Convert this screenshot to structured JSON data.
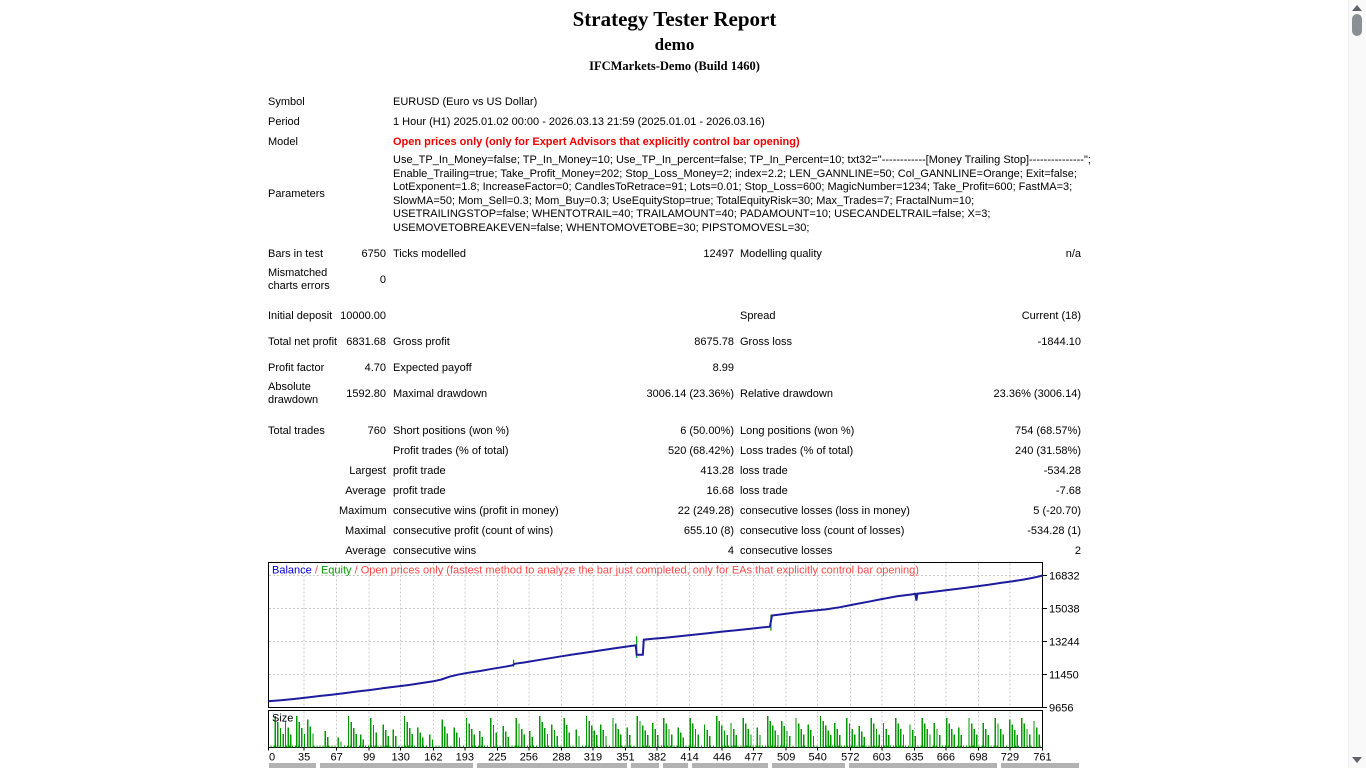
{
  "header": {
    "title": "Strategy Tester Report",
    "subtitle": "demo",
    "server_line": "IFCMarkets-Demo (Build 1460)"
  },
  "colors": {
    "model_text": "#f00000",
    "legend_balance": "#0000dd",
    "legend_equity": "#00a000",
    "legend_note": "#ff4a4a",
    "balance_line": "#1c1c9e",
    "equity_spike": "#00a000",
    "size_bar": "#009a00",
    "grid": "#cbcbcb",
    "chart_border": "#000000",
    "table_header_strip": "#b2b2b2"
  },
  "parameters_lines": [
    "Use_TP_In_Money=false; TP_In_Money=10; Use_TP_In_percent=false; TP_In_Percent=10; txt32=\"------------[Money Trailing Stop]---------------\";",
    "Enable_Trailing=true; Take_Profit_Money=202; Stop_Loss_Money=2; index=2.2; LEN_GANNLINE=50; Col_GANNLINE=Orange; Exit=false;",
    "LotExponent=1.8; IncreaseFactor=0; CandlesToRetrace=91; Lots=0.01; Stop_Loss=600; MagicNumber=1234; Take_Profit=600; FastMA=3;",
    "SlowMA=50; Mom_Sell=0.3; Mom_Buy=0.3; UseEquityStop=true; TotalEquityRisk=30; Max_Trades=7; FractalNum=10;",
    "USETRAILINGSTOP=false; WHENTOTRAIL=40; TRAILAMOUNT=40; PADAMOUNT=10; USECANDELTRAIL=false; X=3;",
    "USEMOVETOBREAKEVEN=false; WHENTOMOVETOBE=30; PIPSTOMOVESL=30;"
  ],
  "info_rows": [
    {
      "al": "Symbol",
      "wide": "EURUSD (Euro vs US Dollar)"
    },
    {
      "al": "Period",
      "wide": "1 Hour (H1) 2025.01.02 00:00 - 2026.03.13 21:59 (2025.01.01 - 2026.03.16)"
    },
    {
      "al": "Model",
      "wide": "Open prices only (only for Expert Advisors that explicitly control bar opening)",
      "red": true
    },
    {
      "al": "Parameters",
      "params": true
    },
    {
      "al": "Bars in test",
      "av": "6750",
      "bl": "Ticks modelled",
      "bv": "12497",
      "cl": "Modelling quality",
      "cv": "n/a",
      "mt": true
    },
    {
      "al": "Mismatched charts errors",
      "av": "0",
      "tall": true
    },
    {
      "gap": 10
    },
    {
      "al": "Initial deposit",
      "av": "10000.00",
      "cl": "Spread",
      "cv": "Current (18)"
    },
    {
      "al": "Total net profit",
      "av": "6831.68",
      "bl": "Gross profit",
      "bv": "8675.78",
      "cl": "Gross loss",
      "cv": "-1844.10",
      "tall": true
    },
    {
      "al": "Profit factor",
      "av": "4.70",
      "bl": "Expected payoff",
      "bv": "8.99"
    },
    {
      "al": "Absolute drawdown",
      "av": "1592.80",
      "bl": "Maximal drawdown",
      "bv": "3006.14 (23.36%)",
      "cl": "Relative drawdown",
      "cv": "23.36% (3006.14)",
      "tall": true
    },
    {
      "gap": 11
    },
    {
      "al": "Total trades",
      "av": "760",
      "bl": "Short positions (won %)",
      "bv": "6 (50.00%)",
      "cl": "Long positions (won %)",
      "cv": "754 (68.57%)"
    },
    {
      "bl": "Profit trades (% of total)",
      "bv": "520 (68.42%)",
      "cl": "Loss trades (% of total)",
      "cv": "240 (31.58%)"
    },
    {
      "av": "Largest",
      "bl": "profit trade",
      "bv": "413.28",
      "cl": "loss trade",
      "cv": "-534.28"
    },
    {
      "av": "Average",
      "bl": "profit trade",
      "bv": "16.68",
      "cl": "loss trade",
      "cv": "-7.68"
    },
    {
      "av": "Maximum",
      "bl": "consecutive wins (profit in money)",
      "bv": "22 (249.28)",
      "cl": "consecutive losses (loss in money)",
      "cv": "5 (-20.70)"
    },
    {
      "av": "Maximal",
      "bl": "consecutive profit (count of wins)",
      "bv": "655.10 (8)",
      "cl": "consecutive loss (count of losses)",
      "cv": "-534.28 (1)"
    },
    {
      "av": "Average",
      "bl": "consecutive wins",
      "bv": "4",
      "cl": "consecutive losses",
      "cv": "2"
    }
  ],
  "chart_data": [
    {
      "type": "line",
      "name": "balance-equity-graph",
      "legend": [
        {
          "label": "Balance",
          "color": "#0000dd"
        },
        {
          "label": "Equity",
          "color": "#00a000"
        },
        {
          "label": "Open prices only (fastest method to analyze the bar just completed, only for EAs that explicitly control bar opening)",
          "color": "#ff4a4a"
        }
      ],
      "x_ticks": [
        0,
        35,
        67,
        99,
        130,
        162,
        193,
        225,
        256,
        288,
        319,
        351,
        382,
        414,
        446,
        477,
        509,
        540,
        572,
        603,
        635,
        666,
        698,
        729,
        761
      ],
      "y_ticks": [
        16832,
        15038,
        13244,
        11450,
        9656
      ],
      "x_range": [
        0,
        761
      ],
      "y_range": [
        9656,
        17530
      ],
      "grid": true,
      "series": [
        {
          "name": "Balance",
          "color": "#1c1c9e",
          "points": [
            [
              0,
              10000
            ],
            [
              12,
              10045
            ],
            [
              25,
              10120
            ],
            [
              38,
              10200
            ],
            [
              50,
              10280
            ],
            [
              62,
              10350
            ],
            [
              75,
              10440
            ],
            [
              88,
              10530
            ],
            [
              100,
              10610
            ],
            [
              112,
              10700
            ],
            [
              125,
              10790
            ],
            [
              138,
              10880
            ],
            [
              150,
              10980
            ],
            [
              162,
              11080
            ],
            [
              170,
              11180
            ],
            [
              178,
              11330
            ],
            [
              186,
              11440
            ],
            [
              196,
              11540
            ],
            [
              208,
              11640
            ],
            [
              220,
              11760
            ],
            [
              232,
              11870
            ],
            [
              240,
              11950
            ],
            [
              242,
              12030
            ],
            [
              252,
              12110
            ],
            [
              264,
              12220
            ],
            [
              276,
              12330
            ],
            [
              288,
              12440
            ],
            [
              300,
              12540
            ],
            [
              312,
              12640
            ],
            [
              325,
              12750
            ],
            [
              338,
              12860
            ],
            [
              350,
              12950
            ],
            [
              358,
              13010
            ],
            [
              361,
              13040
            ],
            [
              362,
              12520
            ],
            [
              368,
              12520
            ],
            [
              369,
              13340
            ],
            [
              378,
              13390
            ],
            [
              390,
              13450
            ],
            [
              404,
              13530
            ],
            [
              418,
              13610
            ],
            [
              432,
              13690
            ],
            [
              446,
              13780
            ],
            [
              460,
              13860
            ],
            [
              474,
              13940
            ],
            [
              486,
              14010
            ],
            [
              493,
              14050
            ],
            [
              495,
              14660
            ],
            [
              505,
              14730
            ],
            [
              518,
              14820
            ],
            [
              532,
              14900
            ],
            [
              548,
              14990
            ],
            [
              562,
              15110
            ],
            [
              576,
              15260
            ],
            [
              590,
              15410
            ],
            [
              604,
              15560
            ],
            [
              618,
              15700
            ],
            [
              630,
              15790
            ],
            [
              636,
              15830
            ],
            [
              637,
              15470
            ],
            [
              638,
              15840
            ],
            [
              648,
              15910
            ],
            [
              660,
              15990
            ],
            [
              672,
              16070
            ],
            [
              684,
              16150
            ],
            [
              696,
              16240
            ],
            [
              708,
              16330
            ],
            [
              720,
              16430
            ],
            [
              732,
              16520
            ],
            [
              742,
              16610
            ],
            [
              750,
              16690
            ],
            [
              756,
              16760
            ],
            [
              761,
              16830
            ]
          ]
        },
        {
          "name": "Equity",
          "color": "#00a000",
          "spikes": [
            [
              241,
              11870,
              12250
            ],
            [
              362,
              12350,
              13530
            ],
            [
              494,
              13830,
              14700
            ]
          ]
        }
      ]
    },
    {
      "type": "bar",
      "name": "trade-size-graph",
      "label": "Size",
      "color": "#009a00",
      "baseline_step": 3,
      "clusters": [
        [
          6,
          0.95,
          4
        ],
        [
          16,
          0.8,
          3
        ],
        [
          27,
          0.95,
          4
        ],
        [
          38,
          0.85,
          3
        ],
        [
          55,
          0.5,
          2
        ],
        [
          68,
          0.3,
          2
        ],
        [
          78,
          0.95,
          4
        ],
        [
          90,
          0.4,
          2
        ],
        [
          100,
          0.9,
          3
        ],
        [
          112,
          0.7,
          3
        ],
        [
          122,
          0.55,
          2
        ],
        [
          133,
          0.95,
          4
        ],
        [
          146,
          0.6,
          3
        ],
        [
          158,
          0.4,
          2
        ],
        [
          170,
          0.85,
          3
        ],
        [
          182,
          0.6,
          3
        ],
        [
          194,
          0.9,
          4
        ],
        [
          207,
          0.5,
          2
        ],
        [
          218,
          0.9,
          3
        ],
        [
          230,
          0.65,
          3
        ],
        [
          243,
          0.9,
          4
        ],
        [
          256,
          0.5,
          2
        ],
        [
          266,
          0.95,
          4
        ],
        [
          278,
          0.7,
          3
        ],
        [
          290,
          0.9,
          3
        ],
        [
          302,
          0.55,
          2
        ],
        [
          312,
          0.95,
          5
        ],
        [
          326,
          0.7,
          3
        ],
        [
          338,
          0.9,
          4
        ],
        [
          352,
          0.6,
          2
        ],
        [
          362,
          0.95,
          5
        ],
        [
          377,
          0.75,
          3
        ],
        [
          388,
          0.9,
          4
        ],
        [
          402,
          0.6,
          3
        ],
        [
          414,
          0.9,
          4
        ],
        [
          428,
          0.7,
          3
        ],
        [
          440,
          0.95,
          5
        ],
        [
          454,
          0.75,
          3
        ],
        [
          466,
          0.9,
          4
        ],
        [
          480,
          0.6,
          2
        ],
        [
          490,
          0.95,
          5
        ],
        [
          504,
          0.8,
          4
        ],
        [
          518,
          0.9,
          4
        ],
        [
          530,
          0.7,
          3
        ],
        [
          542,
          0.95,
          5
        ],
        [
          556,
          0.75,
          3
        ],
        [
          568,
          0.9,
          4
        ],
        [
          580,
          0.65,
          3
        ],
        [
          592,
          0.9,
          4
        ],
        [
          604,
          0.75,
          3
        ],
        [
          616,
          0.9,
          4
        ],
        [
          630,
          0.7,
          3
        ],
        [
          642,
          0.9,
          4
        ],
        [
          654,
          0.75,
          3
        ],
        [
          666,
          0.9,
          4
        ],
        [
          678,
          0.6,
          2
        ],
        [
          688,
          0.9,
          4
        ],
        [
          702,
          0.75,
          3
        ],
        [
          714,
          0.9,
          4
        ],
        [
          728,
          0.85,
          4
        ],
        [
          740,
          0.9,
          4
        ],
        [
          752,
          0.8,
          3
        ]
      ]
    }
  ],
  "bottom_band_segments": [
    [
      1,
      48
    ],
    [
      52,
      205
    ],
    [
      209,
      359
    ],
    [
      363,
      391
    ],
    [
      395,
      420
    ],
    [
      424,
      500
    ],
    [
      504,
      577
    ],
    [
      581,
      729
    ],
    [
      733,
      811
    ]
  ]
}
